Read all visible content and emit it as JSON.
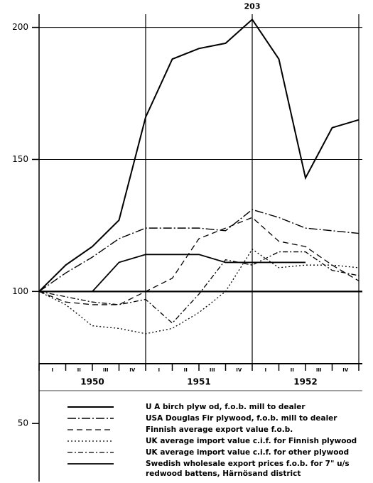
{
  "chart_data": {
    "type": "line",
    "annotation": "203",
    "categories": [
      null,
      null,
      null,
      null,
      null,
      null,
      null,
      null,
      null,
      null,
      null,
      null,
      null
    ],
    "quarter_labels": [
      "I",
      "II",
      "III",
      "IV",
      "I",
      "II",
      "III",
      "IV",
      "I",
      "II",
      "III",
      "IV"
    ],
    "years": [
      "1950",
      "1951",
      "1952"
    ],
    "ylim": [
      28,
      205
    ],
    "yticks": [
      50,
      100,
      150,
      200
    ],
    "grid": true,
    "series": [
      {
        "name": "U A birch plyw od, f.o.b. mill to dealer",
        "color": "#000",
        "dash": "",
        "width": 2,
        "values": [
          100,
          110,
          117,
          127,
          166,
          188,
          192,
          194,
          203,
          188,
          143,
          162,
          165
        ]
      },
      {
        "name": "USA Douglas Fir plywood, f.o.b. mill to dealer",
        "color": "#000",
        "dash": "12 3 2 3",
        "width": 1.4,
        "values": [
          100,
          107,
          113,
          120,
          124,
          124,
          124,
          123,
          131,
          128,
          124,
          123,
          122
        ]
      },
      {
        "name": "Finnish average export value f.o.b.",
        "color": "#000",
        "dash": "8 5",
        "width": 1.3,
        "values": [
          100,
          96,
          95,
          95,
          100,
          105,
          120,
          124,
          128,
          119,
          117,
          110,
          104
        ]
      },
      {
        "name": "UK average import value c.i.f. for Finnish plywood",
        "color": "#000",
        "dash": "2 3",
        "width": 1.3,
        "values": [
          100,
          95,
          87,
          86,
          84,
          86,
          92,
          100,
          116,
          109,
          110,
          110,
          109
        ]
      },
      {
        "name": "UK average import value c.i.f. for other plywood",
        "color": "#000",
        "dash": "7 3 2 3",
        "width": 1.3,
        "values": [
          100,
          98,
          96,
          95,
          97,
          88,
          99,
          112,
          110,
          115,
          115,
          108,
          106
        ]
      },
      {
        "name": "Swedish wholesale export prices f.o.b. for 7\" u/s redwood battens, Härnösand district",
        "color": "#000",
        "dash": "",
        "width": 1.8,
        "values": [
          100,
          100,
          100,
          111,
          114,
          114,
          114,
          111,
          111,
          111,
          111,
          null,
          null
        ]
      }
    ]
  }
}
